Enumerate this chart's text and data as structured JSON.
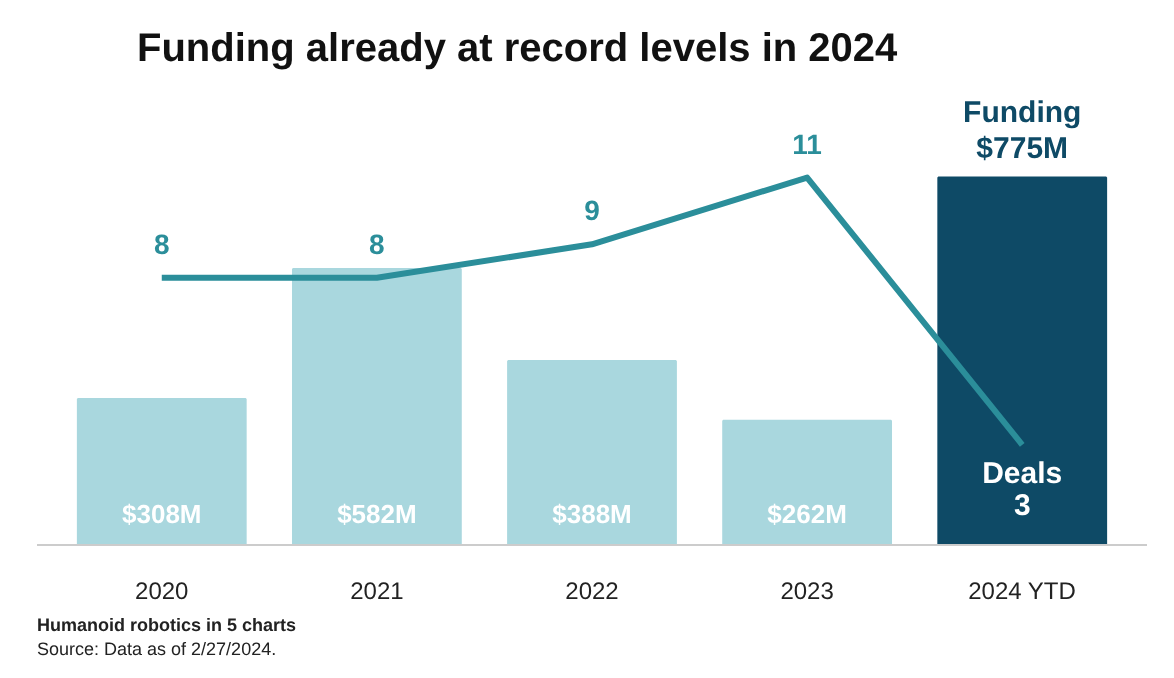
{
  "chart_data": {
    "type": "bar",
    "title": "Funding already at record levels in 2024",
    "categories": [
      "2020",
      "2021",
      "2022",
      "2023",
      "2024 YTD"
    ],
    "series": [
      {
        "name": "Funding",
        "colors": [
          "#a9d7de",
          "#a9d7de",
          "#a9d7de",
          "#a9d7de",
          "#0e4a66"
        ],
        "values": [
          308,
          582,
          388,
          262,
          775
        ],
        "value_labels": [
          "$308M",
          "$582M",
          "$388M",
          "$262M",
          "$775M"
        ]
      },
      {
        "name": "Deals",
        "type": "line",
        "axis": "y2",
        "color": "#2b8e9a",
        "values": [
          8,
          8,
          9,
          11,
          3
        ],
        "value_labels": [
          "8",
          "8",
          "9",
          "11",
          "3"
        ]
      }
    ],
    "annotations": [
      "Humanoid robotics in 5 charts",
      "Source: Data as of 2/27/2024."
    ],
    "grid": false
  }
}
